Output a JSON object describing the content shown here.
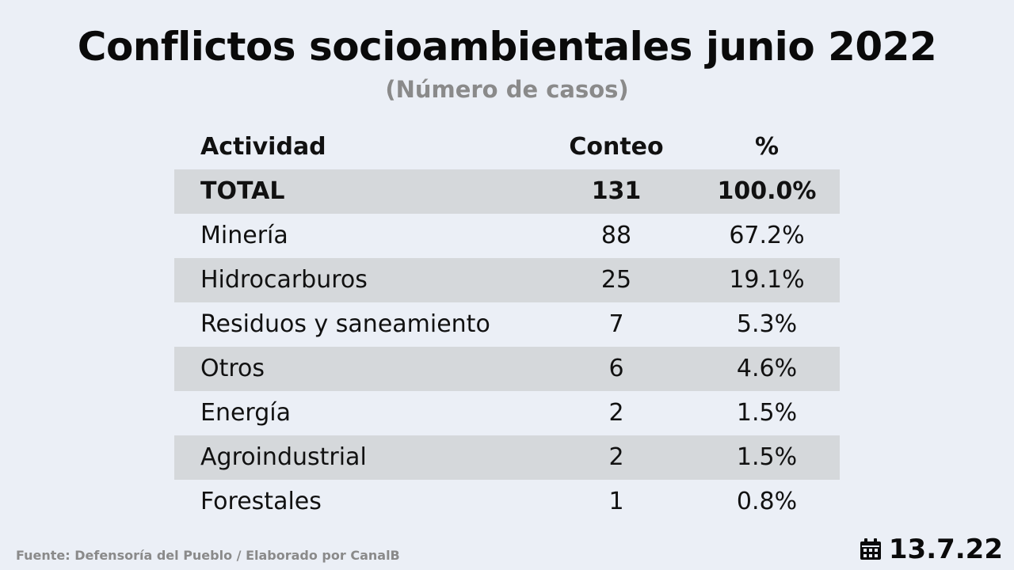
{
  "title": "Conflictos socioambientales junio 2022",
  "subtitle": "(Número de casos)",
  "chart_data": {
    "type": "table",
    "columns": [
      "Actividad",
      "Conteo",
      "%"
    ],
    "rows": [
      {
        "actividad": "TOTAL",
        "conteo": "131",
        "pct": "100.0%"
      },
      {
        "actividad": "Minería",
        "conteo": "88",
        "pct": "67.2%"
      },
      {
        "actividad": "Hidrocarburos",
        "conteo": "25",
        "pct": "19.1%"
      },
      {
        "actividad": "Residuos y saneamiento",
        "conteo": "7",
        "pct": "5.3%"
      },
      {
        "actividad": "Otros",
        "conteo": "6",
        "pct": "4.6%"
      },
      {
        "actividad": "Energía",
        "conteo": "2",
        "pct": "1.5%"
      },
      {
        "actividad": "Agroindustrial",
        "conteo": "2",
        "pct": "1.5%"
      },
      {
        "actividad": "Forestales",
        "conteo": "1",
        "pct": "0.8%"
      }
    ]
  },
  "footer": {
    "source": "Fuente: Defensoría del Pueblo / Elaborado por CanalB",
    "date": "13.7.22",
    "date_icon": "calendar-icon"
  },
  "colors": {
    "background": "#ebeff6",
    "row_shade": "#d5d8db",
    "text": "#111111",
    "muted": "#8a8a8a"
  }
}
